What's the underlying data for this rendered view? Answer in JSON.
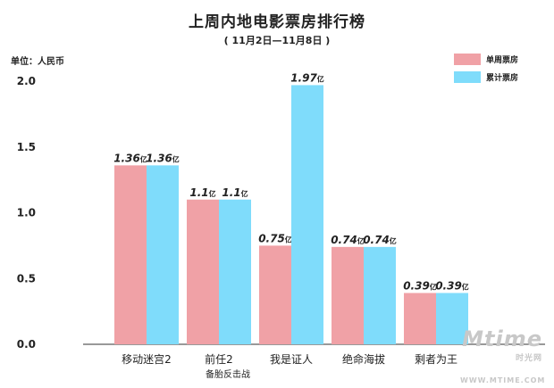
{
  "chart_data": {
    "type": "bar",
    "title": "上周内地电影票房排行榜",
    "subtitle": "( 11月2日—11月8日 )",
    "unit_label": "单位：人民币",
    "categories": [
      "移动迷宫2",
      "前任2",
      "我是证人",
      "绝命海拔",
      "剩者为王"
    ],
    "category_sublabels": [
      "",
      "备胎反击战",
      "",
      "",
      ""
    ],
    "series": [
      {
        "name": "单周票房",
        "values": [
          1.36,
          1.1,
          0.75,
          0.74,
          0.39
        ],
        "labels": [
          "1.36",
          "1.1",
          "0.75",
          "0.74",
          "0.39"
        ],
        "color": "#f0a1a6"
      },
      {
        "name": "累计票房",
        "values": [
          1.36,
          1.1,
          1.97,
          0.74,
          0.39
        ],
        "labels": [
          "1.36",
          "1.1",
          "1.97",
          "0.74",
          "0.39"
        ],
        "color": "#7fdcfb"
      }
    ],
    "value_suffix": "亿",
    "yticks": [
      "0.0",
      "0.5",
      "1.0",
      "1.5",
      "2.0"
    ],
    "ylim": [
      0,
      2.0
    ],
    "legend_position": "top-right"
  },
  "watermark": {
    "logo": "Mtime",
    "cn": "时光网",
    "url": "WWW.MTIME.COM"
  }
}
